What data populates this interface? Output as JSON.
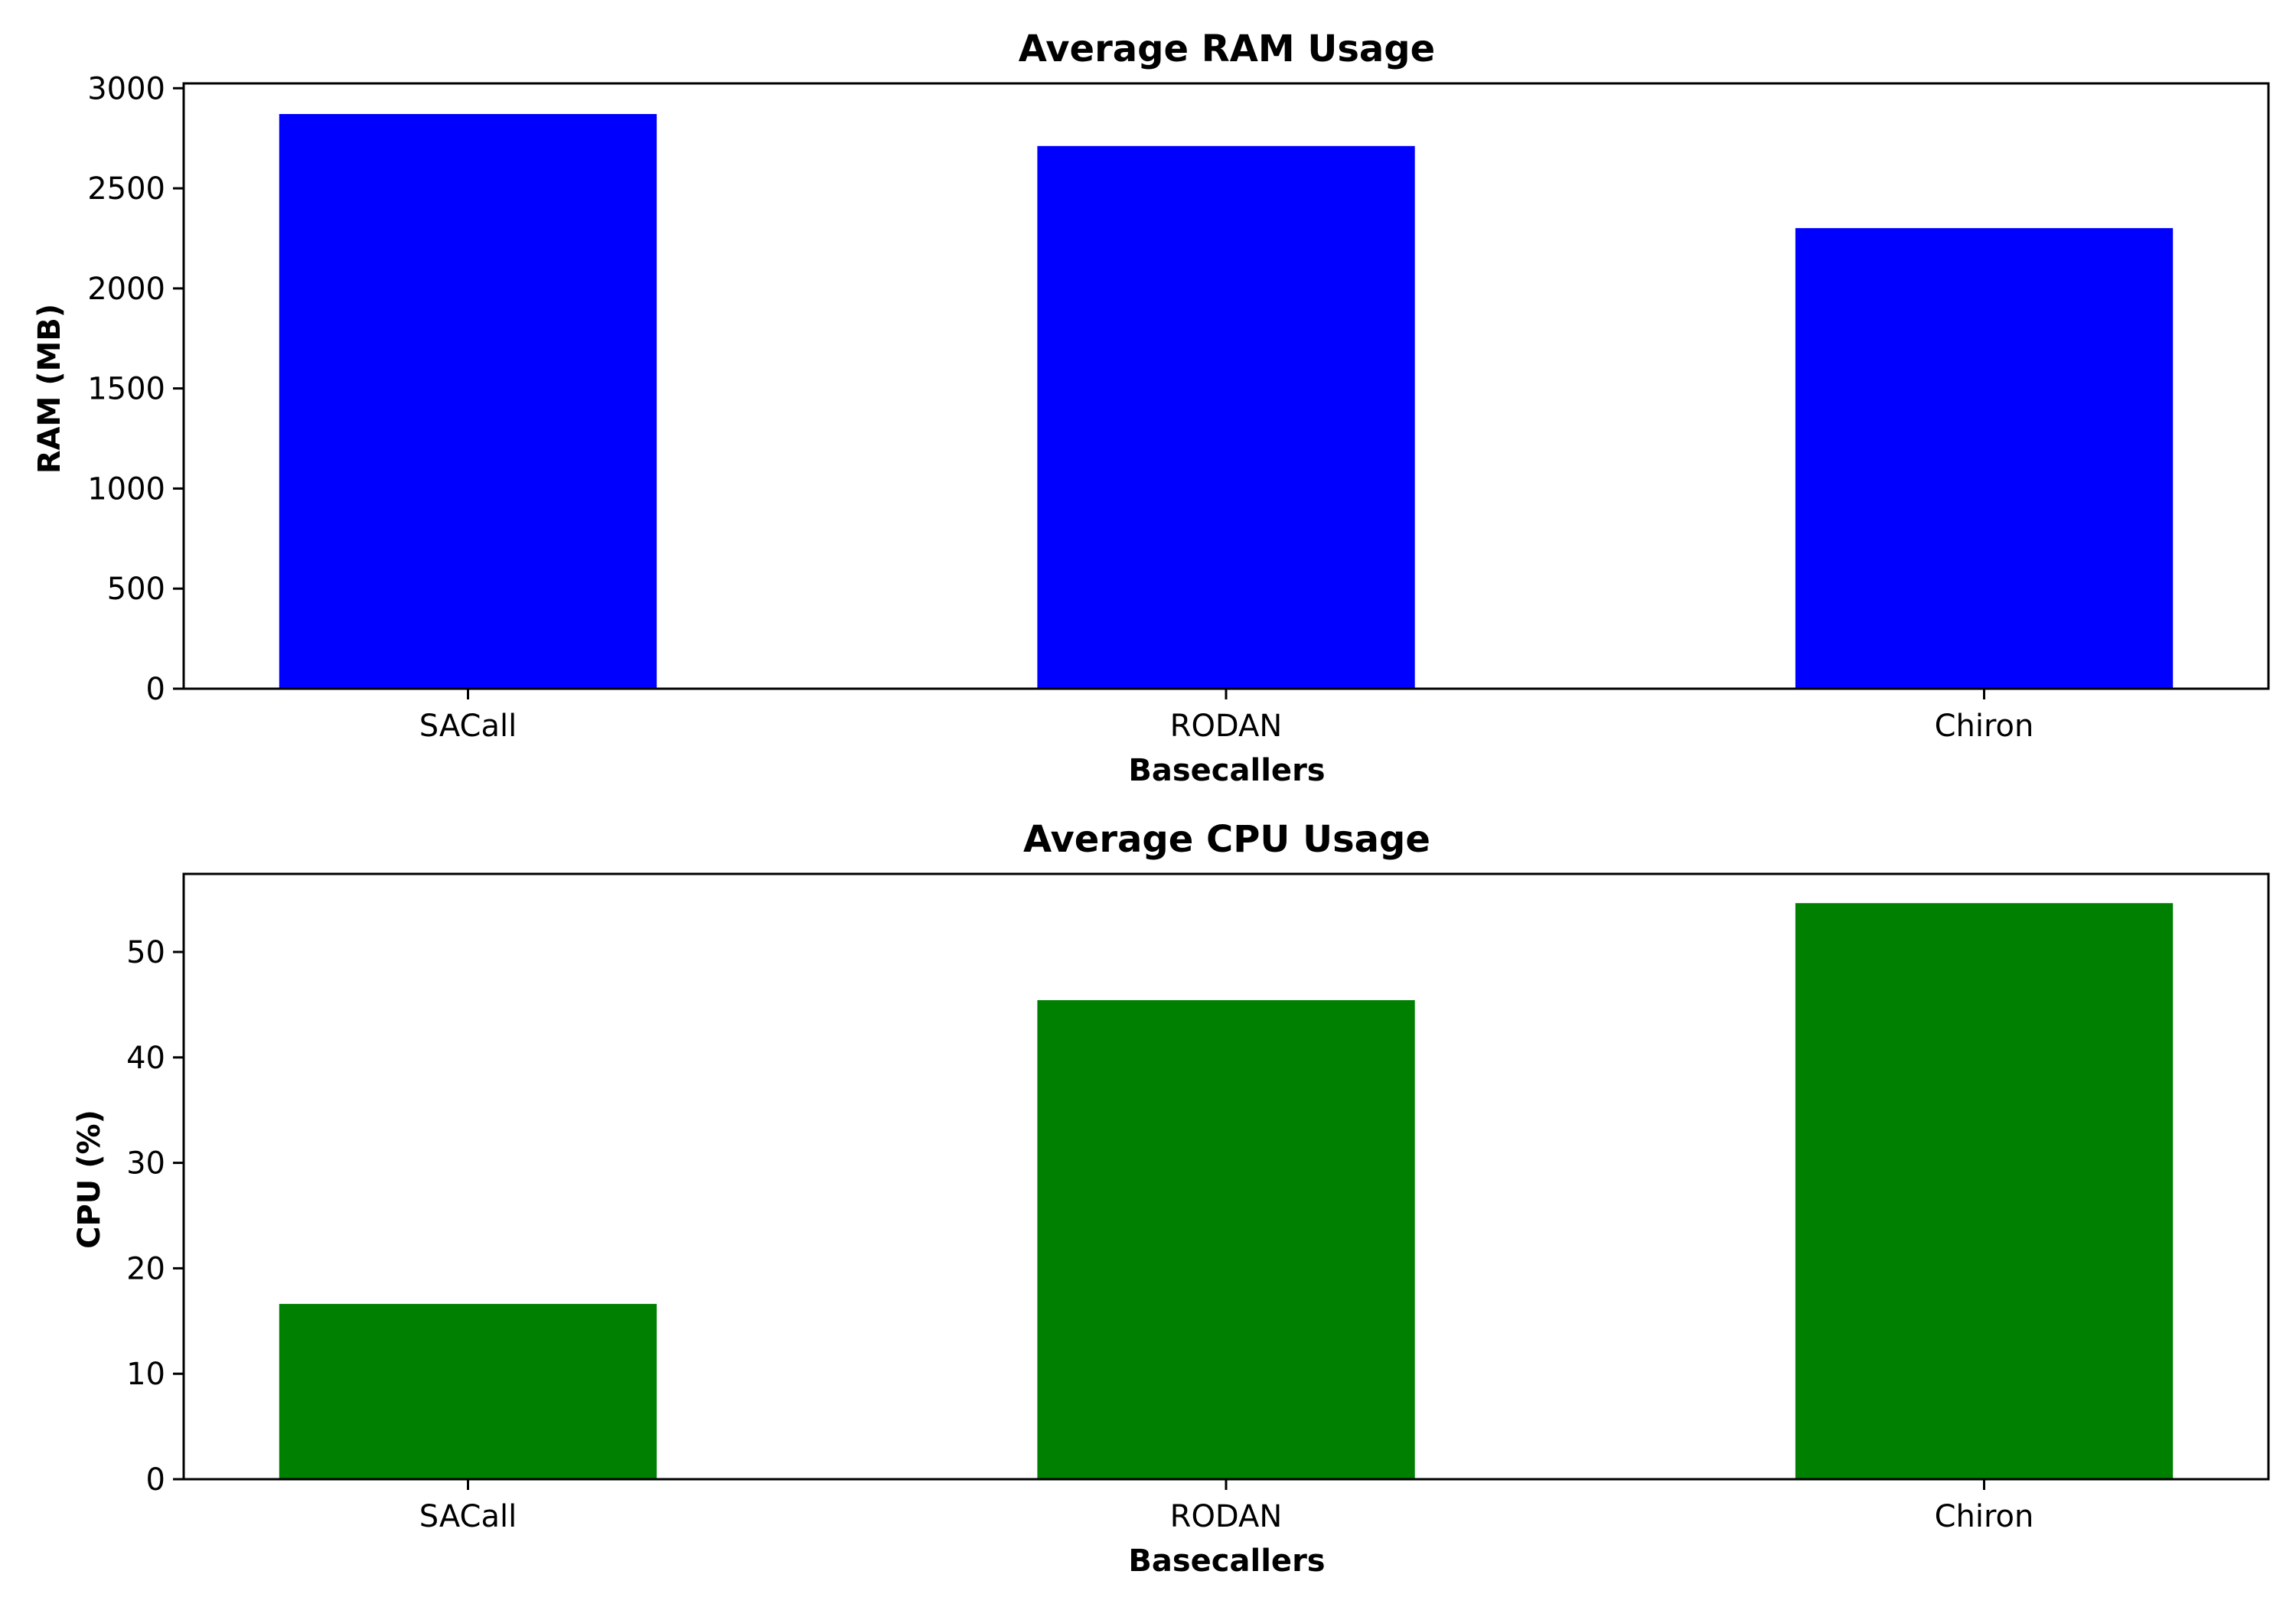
{
  "chart_data": [
    {
      "type": "bar",
      "title": "Average RAM Usage",
      "xlabel": "Basecallers",
      "ylabel": "RAM (MB)",
      "categories": [
        "SACall",
        "RODAN",
        "Chiron"
      ],
      "values": [
        2875,
        2715,
        2305
      ],
      "ylim": [
        0,
        3024
      ],
      "yticks": [
        0,
        500,
        1000,
        1500,
        2000,
        2500,
        3000
      ],
      "bar_color": "#0000ff",
      "grid": false
    },
    {
      "type": "bar",
      "title": "Average CPU Usage",
      "xlabel": "Basecallers",
      "ylabel": "CPU (%)",
      "categories": [
        "SACall",
        "RODAN",
        "Chiron"
      ],
      "values": [
        16.7,
        45.5,
        54.7
      ],
      "ylim": [
        0,
        57.4
      ],
      "yticks": [
        0,
        10,
        20,
        30,
        40,
        50
      ],
      "bar_color": "#008000",
      "grid": false
    }
  ]
}
